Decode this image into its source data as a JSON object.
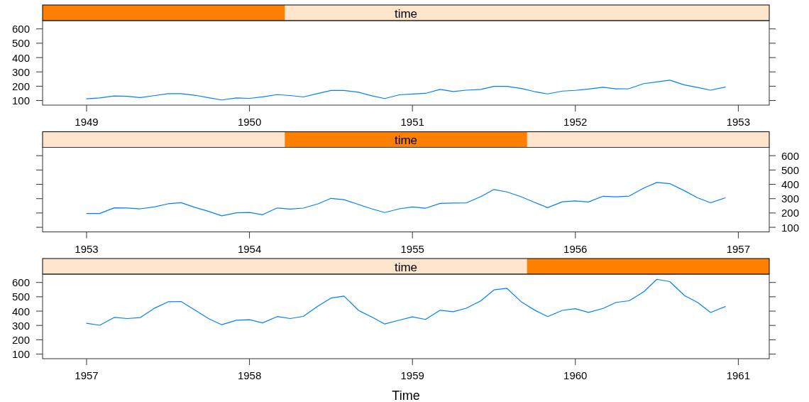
{
  "chart_data": [
    {
      "type": "line",
      "title": "time",
      "x": [
        1949,
        1949.08,
        1949.17,
        1949.25,
        1949.33,
        1949.42,
        1949.5,
        1949.58,
        1949.67,
        1949.75,
        1949.83,
        1949.92,
        1950,
        1950.08,
        1950.17,
        1950.25,
        1950.33,
        1950.42,
        1950.5,
        1950.58,
        1950.67,
        1950.75,
        1950.83,
        1950.92,
        1951,
        1951.08,
        1951.17,
        1951.25,
        1951.33,
        1951.42,
        1951.5,
        1951.58,
        1951.67,
        1951.75,
        1951.83,
        1951.92,
        1952,
        1952.08,
        1952.17,
        1952.25,
        1952.33,
        1952.42,
        1952.5,
        1952.58,
        1952.67,
        1952.75,
        1952.83,
        1952.92
      ],
      "series": [
        {
          "color": "#0080ff",
          "values": [
            112,
            118,
            132,
            129,
            121,
            135,
            148,
            148,
            136,
            119,
            104,
            118,
            115,
            126,
            141,
            135,
            125,
            149,
            170,
            170,
            158,
            133,
            114,
            140,
            145,
            150,
            178,
            163,
            172,
            178,
            199,
            199,
            184,
            162,
            146,
            166,
            171,
            180,
            193,
            181,
            183,
            218,
            230,
            242,
            209,
            191,
            172,
            194
          ]
        }
      ],
      "xlim": [
        1948.73,
        1953.19
      ],
      "xticks": [
        1949,
        1950,
        1951,
        1952,
        1953
      ],
      "ylim": [
        68,
        658
      ],
      "yticks": [
        100,
        200,
        300,
        400,
        500,
        600
      ]
    },
    {
      "type": "line",
      "title": "time",
      "x": [
        1953,
        1953.08,
        1953.17,
        1953.25,
        1953.33,
        1953.42,
        1953.5,
        1953.58,
        1953.67,
        1953.75,
        1953.83,
        1953.92,
        1954,
        1954.08,
        1954.17,
        1954.25,
        1954.33,
        1954.42,
        1954.5,
        1954.58,
        1954.67,
        1954.75,
        1954.83,
        1954.92,
        1955,
        1955.08,
        1955.17,
        1955.25,
        1955.33,
        1955.42,
        1955.5,
        1955.58,
        1955.67,
        1955.75,
        1955.83,
        1955.92,
        1956,
        1956.08,
        1956.17,
        1956.25,
        1956.33,
        1956.42,
        1956.5,
        1956.58,
        1956.67,
        1956.75,
        1956.83,
        1956.92
      ],
      "series": [
        {
          "color": "#0080ff",
          "axis": "y2",
          "values": [
            196,
            196,
            236,
            235,
            229,
            243,
            264,
            272,
            237,
            211,
            180,
            201,
            204,
            188,
            235,
            227,
            234,
            264,
            302,
            293,
            259,
            229,
            203,
            229,
            242,
            233,
            267,
            269,
            270,
            315,
            364,
            347,
            312,
            274,
            237,
            278,
            284,
            277,
            317,
            313,
            318,
            374,
            413,
            405,
            355,
            306,
            271,
            306
          ]
        }
      ],
      "xlim": [
        1952.73,
        1957.19
      ],
      "xticks": [
        1953,
        1954,
        1955,
        1956,
        1957
      ],
      "y2lim": [
        68,
        658
      ],
      "y2ticks": [
        100,
        200,
        300,
        400,
        500,
        600
      ]
    },
    {
      "type": "line",
      "title": "time",
      "xlabel": "Time",
      "x": [
        1957,
        1957.08,
        1957.17,
        1957.25,
        1957.33,
        1957.42,
        1957.5,
        1957.58,
        1957.67,
        1957.75,
        1957.83,
        1957.92,
        1958,
        1958.08,
        1958.17,
        1958.25,
        1958.33,
        1958.42,
        1958.5,
        1958.58,
        1958.67,
        1958.75,
        1958.83,
        1958.92,
        1959,
        1959.08,
        1959.17,
        1959.25,
        1959.33,
        1959.42,
        1959.5,
        1959.58,
        1959.67,
        1959.75,
        1959.83,
        1959.92,
        1960,
        1960.08,
        1960.17,
        1960.25,
        1960.33,
        1960.42,
        1960.5,
        1960.58,
        1960.67,
        1960.75,
        1960.83,
        1960.92
      ],
      "series": [
        {
          "color": "#0080ff",
          "values": [
            315,
            301,
            356,
            348,
            355,
            422,
            465,
            467,
            404,
            347,
            305,
            336,
            340,
            318,
            362,
            348,
            363,
            435,
            491,
            505,
            404,
            359,
            310,
            337,
            360,
            342,
            406,
            396,
            420,
            472,
            548,
            559,
            463,
            407,
            362,
            405,
            417,
            391,
            419,
            461,
            472,
            535,
            622,
            606,
            508,
            461,
            390,
            432
          ]
        }
      ],
      "xlim": [
        1956.73,
        1961.19
      ],
      "xticks": [
        1957,
        1958,
        1959,
        1960,
        1961
      ],
      "ylim": [
        68,
        658
      ],
      "yticks": [
        100,
        200,
        300,
        400,
        500,
        600
      ]
    }
  ]
}
